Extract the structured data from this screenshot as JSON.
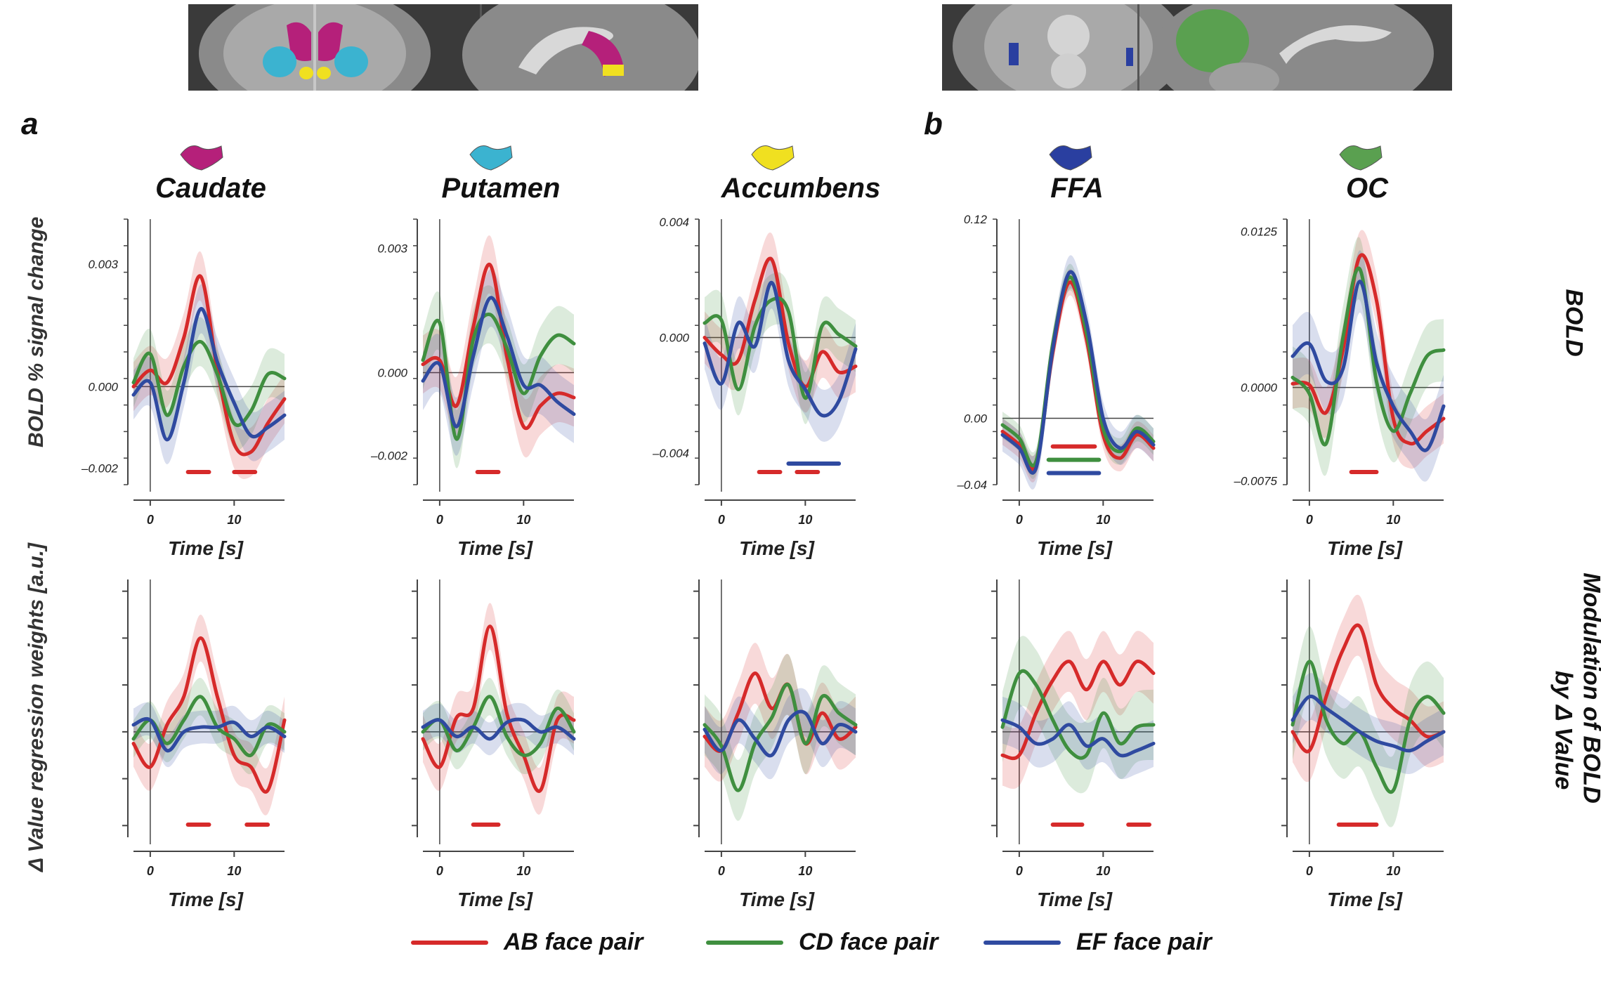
{
  "panel_labels": {
    "a": "a",
    "b": "b"
  },
  "row_labels": {
    "bold": "BOLD",
    "modulation_line1": "Modulation of BOLD",
    "modulation_line2": "by Δ Value",
    "ylabel_top": "BOLD % signal change",
    "ylabel_bottom": "Δ Value regression weights [a.u.]"
  },
  "legend": [
    {
      "name": "AB face pair",
      "color": "#d62a2a"
    },
    {
      "name": "CD face pair",
      "color": "#3f8f3f"
    },
    {
      "name": "EF face pair",
      "color": "#2f4aa0"
    }
  ],
  "colors": {
    "AB": "#d62a2a",
    "CD": "#3f8f3f",
    "EF": "#2f4aa0",
    "caudate": "#b5207a",
    "putamen": "#3bb3d0",
    "accumbens": "#f0e020",
    "ffa": "#2a3fa0",
    "oc": "#5aa050"
  },
  "chart_data": [
    {
      "type": "line",
      "region": "Caudate",
      "row": "BOLD",
      "icon_color": "#b5207a",
      "xlabel": "Time [s]",
      "xlim": [
        -2,
        16
      ],
      "ylim": [
        -0.0024,
        0.0041
      ],
      "xticks": [
        "0",
        "10"
      ],
      "ytick_labels": [
        "0.003",
        "0.000",
        "–0.002"
      ],
      "ytick_values": [
        0.003,
        0.0,
        -0.002
      ],
      "x": [
        -2,
        0,
        2,
        4,
        6,
        8,
        10,
        12,
        14,
        16
      ],
      "series": [
        {
          "key": "AB",
          "values": [
            0.0,
            0.0004,
            0.0001,
            0.0012,
            0.0027,
            0.0004,
            -0.0014,
            -0.0016,
            -0.0009,
            -0.0003
          ],
          "band": 0.0006
        },
        {
          "key": "CD",
          "values": [
            0.0001,
            0.0008,
            -0.0007,
            0.0005,
            0.0011,
            0.0003,
            -0.0009,
            -0.0006,
            0.0003,
            0.0002
          ],
          "band": 0.0006
        },
        {
          "key": "EF",
          "values": [
            -0.0002,
            0.0001,
            -0.0013,
            0.0001,
            0.0019,
            0.0006,
            -0.0004,
            -0.0012,
            -0.001,
            -0.0007
          ],
          "band": 0.0006
        }
      ],
      "sig_bars": [
        {
          "key": "AB",
          "x0": 4.5,
          "x1": 7
        },
        {
          "key": "AB",
          "x0": 10,
          "x1": 12.5
        }
      ]
    },
    {
      "type": "line",
      "region": "Putamen",
      "row": "BOLD",
      "icon_color": "#3bb3d0",
      "xlabel": "Time [s]",
      "xlim": [
        -2,
        16
      ],
      "ylim": [
        -0.0027,
        0.0037
      ],
      "xticks": [
        "0",
        "10"
      ],
      "ytick_labels": [
        "0.003",
        "0.000",
        "–0.002"
      ],
      "ytick_values": [
        0.003,
        0.0,
        -0.002
      ],
      "x": [
        -2,
        0,
        2,
        4,
        6,
        8,
        10,
        12,
        14,
        16
      ],
      "series": [
        {
          "key": "AB",
          "values": [
            0.0002,
            0.0003,
            -0.0008,
            0.0011,
            0.0026,
            0.0004,
            -0.0013,
            -0.0008,
            -0.0005,
            -0.0006
          ],
          "band": 0.0007
        },
        {
          "key": "CD",
          "values": [
            0.0003,
            0.0012,
            -0.0016,
            0.0008,
            0.0014,
            0.0006,
            -0.0005,
            0.0004,
            0.0009,
            0.0007
          ],
          "band": 0.0007
        },
        {
          "key": "EF",
          "values": [
            -0.0002,
            0.0002,
            -0.0013,
            0.0004,
            0.0018,
            0.0009,
            -0.0003,
            -0.0003,
            -0.0007,
            -0.001
          ],
          "band": 0.0007
        }
      ],
      "sig_bars": [
        {
          "key": "AB",
          "x0": 4.5,
          "x1": 7
        }
      ]
    },
    {
      "type": "line",
      "region": "Accumbens",
      "row": "BOLD",
      "icon_color": "#f0e020",
      "xlabel": "Time [s]",
      "xlim": [
        -2,
        16
      ],
      "ylim": [
        -0.0051,
        0.0041
      ],
      "xticks": [
        "0",
        "10"
      ],
      "ytick_labels": [
        "0.004",
        "0.000",
        "–0.004"
      ],
      "ytick_values": [
        0.004,
        0.0,
        -0.004
      ],
      "x": [
        -2,
        0,
        2,
        4,
        6,
        8,
        10,
        12,
        14,
        16
      ],
      "series": [
        {
          "key": "AB",
          "values": [
            0.0,
            -0.0006,
            -0.0008,
            0.0013,
            0.0027,
            -0.0002,
            -0.0017,
            -0.0005,
            -0.0012,
            -0.001
          ],
          "band": 0.0009
        },
        {
          "key": "CD",
          "values": [
            0.0005,
            0.0006,
            -0.0018,
            0.0004,
            0.0013,
            0.0009,
            -0.0021,
            0.0004,
            0.0001,
            -0.0003
          ],
          "band": 0.0009
        },
        {
          "key": "EF",
          "values": [
            -0.0002,
            -0.0016,
            0.0005,
            -0.0003,
            0.0019,
            -0.0008,
            -0.0018,
            -0.0027,
            -0.0022,
            -0.0004
          ],
          "band": 0.0009
        }
      ],
      "sig_bars": [
        {
          "key": "AB",
          "x0": 4.5,
          "x1": 7
        },
        {
          "key": "AB",
          "x0": 9,
          "x1": 11.5
        },
        {
          "key": "EF",
          "x0": 8,
          "x1": 14
        }
      ]
    },
    {
      "type": "line",
      "region": "FFA",
      "row": "BOLD",
      "icon_color": "#2a3fa0",
      "xlabel": "Time [s]",
      "xlim": [
        -2,
        16
      ],
      "ylim": [
        -0.04,
        0.12
      ],
      "xticks": [
        "0",
        "10"
      ],
      "ytick_labels": [
        "0.12",
        "0.00",
        "–0.04"
      ],
      "ytick_values": [
        0.12,
        0.0,
        -0.04
      ],
      "x": [
        -2,
        0,
        2,
        4,
        6,
        8,
        10,
        12,
        14,
        16
      ],
      "series": [
        {
          "key": "AB",
          "values": [
            -0.008,
            -0.016,
            -0.028,
            0.04,
            0.082,
            0.048,
            -0.01,
            -0.024,
            -0.01,
            -0.018
          ],
          "band": 0.008
        },
        {
          "key": "CD",
          "values": [
            -0.004,
            -0.012,
            -0.026,
            0.045,
            0.085,
            0.052,
            -0.006,
            -0.02,
            -0.006,
            -0.014
          ],
          "band": 0.008
        },
        {
          "key": "EF",
          "values": [
            -0.01,
            -0.018,
            -0.03,
            0.042,
            0.088,
            0.058,
            0.0,
            -0.018,
            -0.008,
            -0.016
          ],
          "band": 0.01
        }
      ],
      "sig_bars": [
        {
          "key": "AB",
          "x0": 4,
          "x1": 9
        },
        {
          "key": "CD",
          "x0": 3.5,
          "x1": 9.5
        },
        {
          "key": "EF",
          "x0": 3.5,
          "x1": 9.5
        }
      ]
    },
    {
      "type": "line",
      "region": "OC",
      "row": "BOLD",
      "icon_color": "#5aa050",
      "xlabel": "Time [s]",
      "xlim": [
        -2,
        16
      ],
      "ylim": [
        -0.0078,
        0.0135
      ],
      "xticks": [
        "0",
        "10"
      ],
      "ytick_labels": [
        "0.0125",
        "0.0000",
        "–0.0075"
      ],
      "ytick_values": [
        0.0125,
        0.0,
        -0.0075
      ],
      "x": [
        -2,
        0,
        2,
        4,
        6,
        8,
        10,
        12,
        14,
        16
      ],
      "series": [
        {
          "key": "AB",
          "values": [
            0.0003,
            0.0002,
            -0.002,
            0.003,
            0.0105,
            0.007,
            -0.0025,
            -0.0045,
            -0.0035,
            -0.0025
          ],
          "band": 0.002
        },
        {
          "key": "CD",
          "values": [
            0.0008,
            -0.0005,
            -0.0045,
            0.004,
            0.0095,
            0.0005,
            -0.0035,
            -0.0005,
            0.0025,
            0.003
          ],
          "band": 0.0025
        },
        {
          "key": "EF",
          "values": [
            0.0025,
            0.0035,
            0.0005,
            0.0015,
            0.0085,
            0.002,
            -0.0015,
            -0.0035,
            -0.005,
            -0.0015
          ],
          "band": 0.0025
        }
      ],
      "sig_bars": [
        {
          "key": "AB",
          "x0": 5,
          "x1": 8
        }
      ]
    },
    {
      "type": "line",
      "region": "Caudate",
      "row": "Modulation of BOLD by Δ Value",
      "xlabel": "Time [s]",
      "xlim": [
        -2,
        16
      ],
      "ylim": [
        -4.5,
        6.5
      ],
      "zero": 0,
      "xticks": [
        "0",
        "10"
      ],
      "tick_values": [
        -4,
        -2,
        0,
        2,
        4,
        6
      ],
      "x": [
        -2,
        0,
        2,
        4,
        6,
        8,
        10,
        12,
        14,
        16
      ],
      "series": [
        {
          "key": "AB",
          "values": [
            -0.5,
            -1.5,
            0.3,
            1.5,
            4.0,
            1.5,
            -1.0,
            -1.5,
            -2.5,
            0.5
          ],
          "band": 1.0
        },
        {
          "key": "CD",
          "values": [
            -0.3,
            0.5,
            -0.5,
            0.5,
            1.5,
            0.2,
            -0.3,
            -1.0,
            0.3,
            0.0
          ],
          "band": 0.8
        },
        {
          "key": "EF",
          "values": [
            0.3,
            0.5,
            -0.8,
            0.0,
            0.2,
            0.2,
            0.4,
            -0.2,
            0.2,
            -0.2
          ],
          "band": 0.7
        }
      ],
      "sig_bars": [
        {
          "key": "AB",
          "x0": 4.5,
          "x1": 7
        },
        {
          "key": "AB",
          "x0": 11.5,
          "x1": 14
        }
      ]
    },
    {
      "type": "line",
      "region": "Putamen",
      "row": "Modulation of BOLD by Δ Value",
      "xlabel": "Time [s]",
      "xlim": [
        -2,
        16
      ],
      "ylim": [
        -4.5,
        6.5
      ],
      "zero": 0,
      "xticks": [
        "0",
        "10"
      ],
      "tick_values": [
        -4,
        -2,
        0,
        2,
        4,
        6
      ],
      "x": [
        -2,
        0,
        2,
        4,
        6,
        8,
        10,
        12,
        14,
        16
      ],
      "series": [
        {
          "key": "AB",
          "values": [
            -0.3,
            -1.5,
            0.6,
            1.0,
            4.5,
            0.8,
            -1.0,
            -2.5,
            0.5,
            0.5
          ],
          "band": 1.0
        },
        {
          "key": "CD",
          "values": [
            0.0,
            0.5,
            -0.8,
            0.2,
            1.5,
            -0.2,
            -1.0,
            -0.5,
            1.0,
            0.0
          ],
          "band": 0.8
        },
        {
          "key": "EF",
          "values": [
            0.2,
            0.5,
            -0.2,
            0.2,
            -0.3,
            0.4,
            0.5,
            0.0,
            0.2,
            -0.3
          ],
          "band": 0.7
        }
      ],
      "sig_bars": [
        {
          "key": "AB",
          "x0": 4,
          "x1": 7
        }
      ]
    },
    {
      "type": "line",
      "region": "Accumbens",
      "row": "Modulation of BOLD by Δ Value",
      "xlabel": "Time [s]",
      "xlim": [
        -2,
        16
      ],
      "ylim": [
        -4.5,
        6.5
      ],
      "zero": 0,
      "xticks": [
        "0",
        "10"
      ],
      "tick_values": [
        -4,
        -2,
        0,
        2,
        4,
        6
      ],
      "x": [
        -2,
        0,
        2,
        4,
        6,
        8,
        10,
        12,
        14,
        16
      ],
      "series": [
        {
          "key": "AB",
          "values": [
            -0.2,
            -0.8,
            0.8,
            2.5,
            1.0,
            2.0,
            -0.5,
            0.8,
            -0.3,
            0.2
          ],
          "band": 1.3
        },
        {
          "key": "CD",
          "values": [
            0.3,
            -0.6,
            -2.5,
            -0.5,
            0.6,
            2.0,
            -0.5,
            1.5,
            0.8,
            0.3
          ],
          "band": 1.3
        },
        {
          "key": "EF",
          "values": [
            0.1,
            -0.8,
            0.5,
            -0.3,
            -1.0,
            0.5,
            0.8,
            -0.5,
            0.3,
            0.0
          ],
          "band": 1.0
        }
      ],
      "sig_bars": []
    },
    {
      "type": "line",
      "region": "FFA",
      "row": "Modulation of BOLD by Δ Value",
      "xlabel": "Time [s]",
      "xlim": [
        -2,
        16
      ],
      "ylim": [
        -4.5,
        6.5
      ],
      "zero": 0,
      "xticks": [
        "0",
        "10"
      ],
      "tick_values": [
        -4,
        -2,
        0,
        2,
        4,
        6
      ],
      "x": [
        -2,
        0,
        2,
        4,
        6,
        8,
        10,
        12,
        14,
        16
      ],
      "series": [
        {
          "key": "AB",
          "values": [
            -1.0,
            -1.0,
            0.8,
            2.2,
            3.0,
            1.8,
            3.0,
            2.0,
            3.0,
            2.5
          ],
          "band": 1.3
        },
        {
          "key": "CD",
          "values": [
            0.2,
            2.5,
            2.0,
            0.5,
            -0.8,
            -1.0,
            0.8,
            -0.5,
            0.2,
            0.3
          ],
          "band": 1.5
        },
        {
          "key": "EF",
          "values": [
            0.5,
            0.2,
            -0.5,
            -0.3,
            0.3,
            -0.6,
            -0.3,
            -1.0,
            -0.8,
            -0.5
          ],
          "band": 1.0
        }
      ],
      "sig_bars": [
        {
          "key": "AB",
          "x0": 4,
          "x1": 7.5
        },
        {
          "key": "AB",
          "x0": 13,
          "x1": 15.5
        }
      ]
    },
    {
      "type": "line",
      "region": "OC",
      "row": "Modulation of BOLD by Δ Value",
      "xlabel": "Time [s]",
      "xlim": [
        -2,
        16
      ],
      "ylim": [
        -4.5,
        6.5
      ],
      "zero": 0,
      "xticks": [
        "0",
        "10"
      ],
      "tick_values": [
        -4,
        -2,
        0,
        2,
        4,
        6
      ],
      "x": [
        -2,
        0,
        2,
        4,
        6,
        8,
        10,
        12,
        14,
        16
      ],
      "series": [
        {
          "key": "AB",
          "values": [
            0.0,
            -0.8,
            1.5,
            3.5,
            4.5,
            2.0,
            1.0,
            0.5,
            -0.2,
            0.0
          ],
          "band": 1.3
        },
        {
          "key": "CD",
          "values": [
            0.3,
            3.0,
            0.5,
            -0.5,
            0.0,
            -1.5,
            -2.5,
            0.5,
            1.5,
            0.8
          ],
          "band": 1.5
        },
        {
          "key": "EF",
          "values": [
            0.5,
            1.5,
            1.0,
            0.5,
            0.0,
            -0.4,
            -0.6,
            -0.8,
            -0.4,
            0.0
          ],
          "band": 1.0
        }
      ],
      "sig_bars": [
        {
          "key": "AB",
          "x0": 3.5,
          "x1": 8
        }
      ]
    }
  ]
}
